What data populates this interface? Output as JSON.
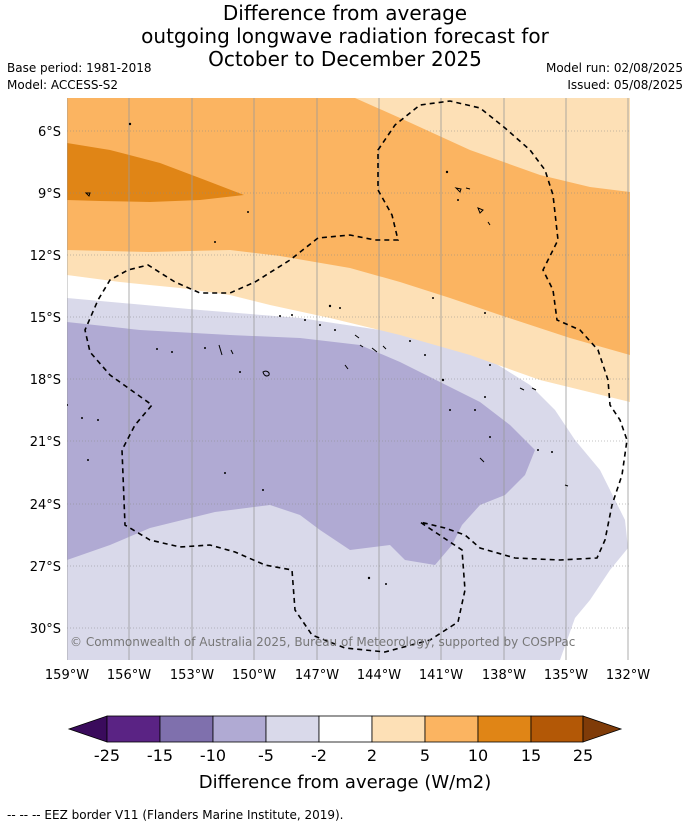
{
  "title": {
    "line1": "Difference from average",
    "line2": "outgoing longwave radiation forecast for",
    "line3": "October to December 2025"
  },
  "meta": {
    "base_period": "Base period: 1981-2018",
    "model": "Model: ACCESS-S2",
    "model_run": "Model run: 02/08/2025",
    "issued": "Issued: 05/08/2025"
  },
  "map": {
    "lat_labels": [
      "6°S",
      "9°S",
      "12°S",
      "15°S",
      "18°S",
      "21°S",
      "24°S",
      "27°S",
      "30°S"
    ],
    "lon_labels": [
      "159°W",
      "156°W",
      "153°W",
      "150°W",
      "147°W",
      "144°W",
      "141°W",
      "138°W",
      "135°W",
      "132°W"
    ],
    "copyright": "© Commonwealth of Australia 2025, Bureau of Meteorology, supported by COSPPac"
  },
  "legend": {
    "tick_labels": [
      "-25",
      "-15",
      "-10",
      "-5",
      "-2",
      "2",
      "5",
      "10",
      "15",
      "25"
    ],
    "colors": [
      "#3a0b5c",
      "#5a2384",
      "#7f70ad",
      "#b0aad3",
      "#d9d9ea",
      "#ffffff",
      "#fde0b6",
      "#fbb461",
      "#e08516",
      "#b35806",
      "#7f3b08"
    ],
    "title": "Difference from average (W/m2)"
  },
  "footer": "-- -- -- EEZ border V11 (Flanders Marine Institute, 2019)."
}
